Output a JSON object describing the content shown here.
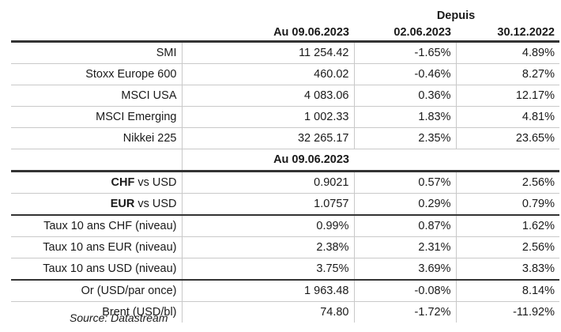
{
  "header": {
    "depuis": "Depuis",
    "col_value": "Au 09.06.2023",
    "col_week": "02.06.2023",
    "col_year": "30.12.2022"
  },
  "indices": [
    {
      "label": "SMI",
      "value": "11 254.42",
      "week": "-1.65%",
      "year": "4.89%"
    },
    {
      "label": "Stoxx Europe 600",
      "value": "460.02",
      "week": "-0.46%",
      "year": "8.27%"
    },
    {
      "label": "MSCI USA",
      "value": "4 083.06",
      "week": "0.36%",
      "year": "12.17%"
    },
    {
      "label": "MSCI Emerging",
      "value": "1 002.33",
      "week": "1.83%",
      "year": "4.81%"
    },
    {
      "label": "Nikkei 225",
      "value": "32 265.17",
      "week": "2.35%",
      "year": "23.65%"
    }
  ],
  "subheader": {
    "col_value": "Au 09.06.2023"
  },
  "fx": [
    {
      "label_bold": "CHF",
      "label_rest": " vs USD",
      "value": "0.9021",
      "week": "0.57%",
      "year": "2.56%"
    },
    {
      "label_bold": "EUR",
      "label_rest": " vs USD",
      "value": "1.0757",
      "week": "0.29%",
      "year": "0.79%"
    }
  ],
  "rates": [
    {
      "label": "Taux 10 ans CHF (niveau)",
      "value": "0.99%",
      "week": "0.87%",
      "year": "1.62%"
    },
    {
      "label": "Taux 10 ans EUR (niveau)",
      "value": "2.38%",
      "week": "2.31%",
      "year": "2.56%"
    },
    {
      "label": "Taux 10 ans USD (niveau)",
      "value": "3.75%",
      "week": "3.69%",
      "year": "3.83%"
    }
  ],
  "commodities": [
    {
      "label": "Or (USD/par once)",
      "value": "1 963.48",
      "week": "-0.08%",
      "year": "8.14%"
    },
    {
      "label": "Brent (USD/bl)",
      "value": "74.80",
      "week": "-1.72%",
      "year": "-11.92%"
    }
  ],
  "source": "Source: Datastream"
}
